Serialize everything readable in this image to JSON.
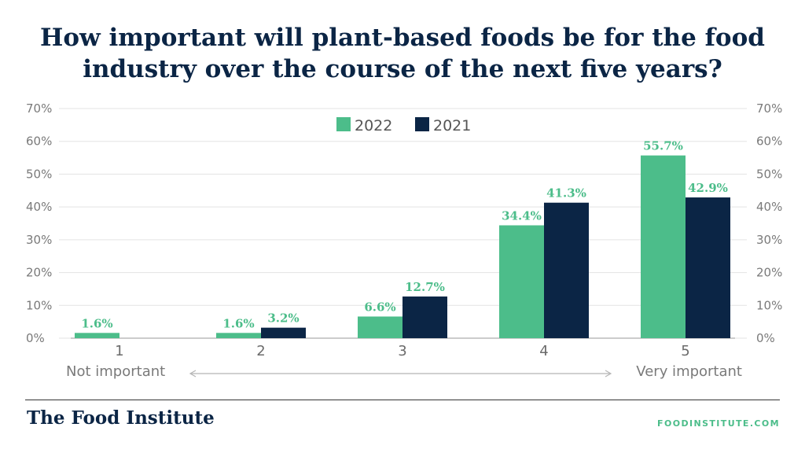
{
  "title": {
    "line1": "How important will plant-based foods be for the food",
    "line2": "industry over the course of the next five years?"
  },
  "footer": {
    "brand": "The Food Institute",
    "site": "FOODINSTITUTE.COM"
  },
  "scale": {
    "left": "Not important",
    "right": "Very important"
  },
  "colors": {
    "series_2022": "#4cbd8a",
    "series_2021": "#0b2545",
    "value_label": "#4cbd8a",
    "axis_text": "#7a7a7a",
    "grid": "#e3e3e3"
  },
  "chart_data": {
    "type": "bar",
    "categories": [
      "1",
      "2",
      "3",
      "4",
      "5"
    ],
    "series": [
      {
        "name": "2022",
        "values": [
          1.6,
          1.6,
          6.6,
          34.4,
          55.7
        ]
      },
      {
        "name": "2021",
        "values": [
          null,
          3.2,
          12.7,
          41.3,
          42.9
        ]
      }
    ],
    "ylim": [
      0,
      70
    ],
    "yticks": [
      0,
      10,
      20,
      30,
      40,
      50,
      60,
      70
    ],
    "ytick_labels": [
      "0%",
      "10%",
      "20%",
      "30%",
      "40%",
      "50%",
      "60%",
      "70%"
    ],
    "value_labels": [
      [
        "1.6%",
        "1.6%",
        "6.6%",
        "34.4%",
        "55.7%"
      ],
      [
        "",
        "3.2%",
        "12.7%",
        "41.3%",
        "42.9%"
      ]
    ],
    "grid": true,
    "legend": "top-center",
    "dual_y_axis": true
  }
}
